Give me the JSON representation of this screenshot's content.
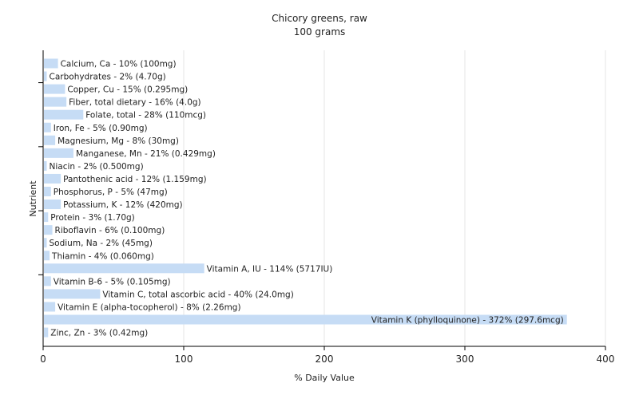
{
  "chart_data": {
    "type": "bar",
    "orientation": "horizontal",
    "title": "Chicory greens, raw",
    "subtitle": "100 grams",
    "xlabel": "% Daily Value",
    "ylabel": "Nutrient",
    "xlim": [
      0,
      400
    ],
    "xticks": [
      0,
      100,
      200,
      300,
      400
    ],
    "grid": true,
    "bar_color": "#c6dcf5",
    "categories": [
      "Calcium, Ca",
      "Carbohydrates",
      "Copper, Cu",
      "Fiber, total dietary",
      "Folate, total",
      "Iron, Fe",
      "Magnesium, Mg",
      "Manganese, Mn",
      "Niacin",
      "Pantothenic acid",
      "Phosphorus, P",
      "Potassium, K",
      "Protein",
      "Riboflavin",
      "Sodium, Na",
      "Thiamin",
      "Vitamin A, IU",
      "Vitamin B-6",
      "Vitamin C, total ascorbic acid",
      "Vitamin E (alpha-tocopherol)",
      "Vitamin K (phylloquinone)",
      "Zinc, Zn"
    ],
    "values": [
      10,
      2,
      15,
      16,
      28,
      5,
      8,
      21,
      2,
      12,
      5,
      12,
      3,
      6,
      2,
      4,
      114,
      5,
      40,
      8,
      372,
      3
    ],
    "labels": [
      "Calcium, Ca - 10% (100mg)",
      "Carbohydrates - 2% (4.70g)",
      "Copper, Cu - 15% (0.295mg)",
      "Fiber, total dietary - 16% (4.0g)",
      "Folate, total - 28% (110mcg)",
      "Iron, Fe - 5% (0.90mg)",
      "Magnesium, Mg - 8% (30mg)",
      "Manganese, Mn - 21% (0.429mg)",
      "Niacin - 2% (0.500mg)",
      "Pantothenic acid - 12% (1.159mg)",
      "Phosphorus, P - 5% (47mg)",
      "Potassium, K - 12% (420mg)",
      "Protein - 3% (1.70g)",
      "Riboflavin - 6% (0.100mg)",
      "Sodium, Na - 2% (45mg)",
      "Thiamin - 4% (0.060mg)",
      "Vitamin A, IU - 114% (5717IU)",
      "Vitamin B-6 - 5% (0.105mg)",
      "Vitamin C, total ascorbic acid - 40% (24.0mg)",
      "Vitamin E (alpha-tocopherol) - 8% (2.26mg)",
      "Vitamin K (phylloquinone) - 372% (297.6mcg)",
      "Zinc, Zn - 3% (0.42mg)"
    ]
  }
}
